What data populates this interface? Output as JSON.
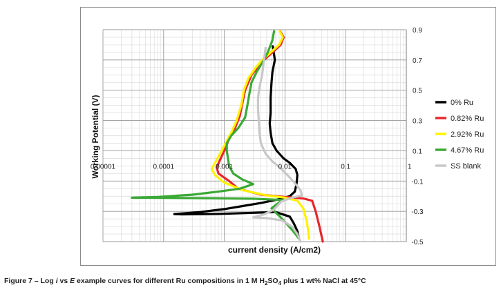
{
  "chart_data": {
    "type": "line",
    "xlabel": "current density (A/cm2)",
    "ylabel": "Working Potential (V)",
    "xscale": "log",
    "xlim": [
      1e-05,
      1
    ],
    "ylim": [
      -0.5,
      0.9
    ],
    "x_ticks": [
      "0.00001",
      "0.0001",
      "0.001",
      "0.01",
      "0.1",
      "1"
    ],
    "y_ticks": [
      "0.9",
      "0.7",
      "0.5",
      "0.3",
      "0.1",
      "-0.1",
      "-0.3",
      "-0.5"
    ],
    "grid": true,
    "legend_position": "right",
    "series": [
      {
        "name": "0% Ru",
        "color": "#000000",
        "points": [
          [
            0.0063,
            0.79
          ],
          [
            0.0068,
            0.7
          ],
          [
            0.0062,
            0.62
          ],
          [
            0.006,
            0.55
          ],
          [
            0.0058,
            0.45
          ],
          [
            0.0058,
            0.35
          ],
          [
            0.0056,
            0.28
          ],
          [
            0.0058,
            0.22
          ],
          [
            0.0062,
            0.15
          ],
          [
            0.0073,
            0.1
          ],
          [
            0.0095,
            0.05
          ],
          [
            0.012,
            0.02
          ],
          [
            0.015,
            -0.02
          ],
          [
            0.016,
            -0.06
          ],
          [
            0.0155,
            -0.12
          ],
          [
            0.0145,
            -0.17
          ],
          [
            0.012,
            -0.2
          ],
          [
            0.008,
            -0.22
          ],
          [
            0.004,
            -0.245
          ],
          [
            0.002,
            -0.265
          ],
          [
            0.001,
            -0.285
          ],
          [
            0.0004,
            -0.305
          ],
          [
            0.00015,
            -0.318
          ],
          [
            0.0002,
            -0.32
          ],
          [
            0.0008,
            -0.317
          ],
          [
            0.003,
            -0.31
          ],
          [
            0.007,
            -0.305
          ],
          [
            0.012,
            -0.335
          ],
          [
            0.014,
            -0.38
          ],
          [
            0.016,
            -0.43
          ],
          [
            0.017,
            -0.48
          ]
        ]
      },
      {
        "name": "0.82% Ru",
        "color": "#e8262b",
        "points": [
          [
            0.0083,
            0.89
          ],
          [
            0.0095,
            0.85
          ],
          [
            0.0085,
            0.8
          ],
          [
            0.0062,
            0.75
          ],
          [
            0.0045,
            0.7
          ],
          [
            0.0035,
            0.65
          ],
          [
            0.0028,
            0.6
          ],
          [
            0.0022,
            0.5
          ],
          [
            0.002,
            0.42
          ],
          [
            0.0018,
            0.33
          ],
          [
            0.0015,
            0.25
          ],
          [
            0.0012,
            0.18
          ],
          [
            0.001,
            0.1
          ],
          [
            0.00085,
            0.04
          ],
          [
            0.00075,
            -0.01
          ],
          [
            0.0008,
            -0.05
          ],
          [
            0.0012,
            -0.1
          ],
          [
            0.0017,
            -0.15
          ],
          [
            0.004,
            -0.19
          ],
          [
            0.01,
            -0.205
          ],
          [
            0.02,
            -0.215
          ],
          [
            0.028,
            -0.23
          ],
          [
            0.032,
            -0.3
          ],
          [
            0.037,
            -0.4
          ],
          [
            0.042,
            -0.5
          ]
        ]
      },
      {
        "name": "2.92% Ru",
        "color": "#fff200",
        "points": [
          [
            0.0082,
            0.89
          ],
          [
            0.0092,
            0.85
          ],
          [
            0.008,
            0.8
          ],
          [
            0.0058,
            0.75
          ],
          [
            0.0042,
            0.7
          ],
          [
            0.0033,
            0.65
          ],
          [
            0.0025,
            0.58
          ],
          [
            0.0021,
            0.5
          ],
          [
            0.0019,
            0.4
          ],
          [
            0.0016,
            0.3
          ],
          [
            0.0013,
            0.22
          ],
          [
            0.00105,
            0.15
          ],
          [
            0.00085,
            0.08
          ],
          [
            0.0007,
            0.02
          ],
          [
            0.00062,
            -0.02
          ],
          [
            0.0007,
            -0.06
          ],
          [
            0.001,
            -0.11
          ],
          [
            0.002,
            -0.16
          ],
          [
            0.005,
            -0.195
          ],
          [
            0.01,
            -0.21
          ],
          [
            0.016,
            -0.23
          ],
          [
            0.02,
            -0.28
          ],
          [
            0.023,
            -0.37
          ],
          [
            0.025,
            -0.48
          ]
        ]
      },
      {
        "name": "4.67% Ru",
        "color": "#3aa935",
        "points": [
          [
            0.0066,
            0.89
          ],
          [
            0.0062,
            0.83
          ],
          [
            0.0052,
            0.75
          ],
          [
            0.0042,
            0.68
          ],
          [
            0.0034,
            0.62
          ],
          [
            0.0028,
            0.55
          ],
          [
            0.0026,
            0.48
          ],
          [
            0.0024,
            0.4
          ],
          [
            0.0022,
            0.32
          ],
          [
            0.0017,
            0.25
          ],
          [
            0.0013,
            0.2
          ],
          [
            0.0011,
            0.15
          ],
          [
            0.0011,
            0.1
          ],
          [
            0.00115,
            0.05
          ],
          [
            0.0012,
            0.0
          ],
          [
            0.0014,
            -0.05
          ],
          [
            0.002,
            -0.09
          ],
          [
            0.003,
            -0.12
          ],
          [
            0.0018,
            -0.15
          ],
          [
            0.0008,
            -0.17
          ],
          [
            0.0003,
            -0.19
          ],
          [
            8e-05,
            -0.205
          ],
          [
            3e-05,
            -0.21
          ],
          [
            0.0001,
            -0.211
          ],
          [
            0.0006,
            -0.213
          ],
          [
            0.003,
            -0.217
          ],
          [
            0.009,
            -0.225
          ],
          [
            0.006,
            -0.28
          ],
          [
            0.009,
            -0.35
          ],
          [
            0.013,
            -0.42
          ],
          [
            0.017,
            -0.48
          ]
        ]
      },
      {
        "name": "SS blank",
        "color": "#c8c8c8",
        "points": [
          [
            0.0048,
            0.78
          ],
          [
            0.0045,
            0.7
          ],
          [
            0.0042,
            0.6
          ],
          [
            0.0038,
            0.52
          ],
          [
            0.0036,
            0.45
          ],
          [
            0.0036,
            0.37
          ],
          [
            0.0037,
            0.3
          ],
          [
            0.0038,
            0.22
          ],
          [
            0.004,
            0.15
          ],
          [
            0.0048,
            0.08
          ],
          [
            0.0062,
            0.03
          ],
          [
            0.0082,
            -0.01
          ],
          [
            0.011,
            -0.06
          ],
          [
            0.015,
            -0.12
          ],
          [
            0.018,
            -0.16
          ],
          [
            0.019,
            -0.195
          ],
          [
            0.013,
            -0.21
          ],
          [
            0.0087,
            -0.235
          ],
          [
            0.0065,
            -0.29
          ],
          [
            0.0045,
            -0.32
          ],
          [
            0.003,
            -0.34
          ],
          [
            0.005,
            -0.345
          ],
          [
            0.009,
            -0.36
          ],
          [
            0.013,
            -0.4
          ],
          [
            0.016,
            -0.45
          ],
          [
            0.018,
            -0.5
          ]
        ]
      }
    ]
  },
  "caption": {
    "prefix": "Figure 7 – Log ",
    "i": "i",
    "vs": " vs ",
    "E": "E",
    "middle": " example curves for different Ru compositions in 1 M H",
    "sub2": "2",
    "so": "SO",
    "sub4": "4",
    "suffix": " plus 1 wt% NaCl at 45°C"
  }
}
